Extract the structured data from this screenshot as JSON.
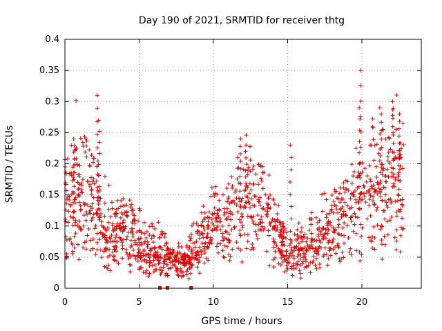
{
  "chart_data": {
    "type": "scatter",
    "title": "Day 190 of 2021, SRMTID for receiver thtg",
    "xlabel": "GPS time / hours",
    "ylabel": "SRMTID / TECUs",
    "xlim": [
      0,
      24
    ],
    "ylim": [
      0,
      0.4
    ],
    "x_ticks": [
      0,
      5,
      10,
      15,
      20
    ],
    "x_tick_labels": [
      "0",
      "5",
      "10",
      "15",
      "20"
    ],
    "y_ticks": [
      0,
      0.05,
      0.1,
      0.15,
      0.2,
      0.25,
      0.3,
      0.35,
      0.4
    ],
    "y_tick_labels": [
      "0",
      "0.05",
      "0.1",
      "0.15",
      "0.2",
      "0.25",
      "0.3",
      "0.35",
      "0.4"
    ],
    "grid": true,
    "marker": "+",
    "color": "#e00000",
    "x_range_of_points": [
      0,
      22.8
    ],
    "envelope_note": "dense scatter; approximate mean level by hour",
    "envelope": [
      {
        "x": 0,
        "y": 0.13
      },
      {
        "x": 1,
        "y": 0.15
      },
      {
        "x": 2,
        "y": 0.14
      },
      {
        "x": 2.5,
        "y": 0.09
      },
      {
        "x": 3,
        "y": 0.08
      },
      {
        "x": 4,
        "y": 0.1
      },
      {
        "x": 5,
        "y": 0.07
      },
      {
        "x": 6,
        "y": 0.06
      },
      {
        "x": 7,
        "y": 0.045
      },
      {
        "x": 8,
        "y": 0.04
      },
      {
        "x": 9,
        "y": 0.07
      },
      {
        "x": 10,
        "y": 0.1
      },
      {
        "x": 11,
        "y": 0.1
      },
      {
        "x": 12,
        "y": 0.14
      },
      {
        "x": 13,
        "y": 0.13
      },
      {
        "x": 14,
        "y": 0.1
      },
      {
        "x": 15,
        "y": 0.05
      },
      {
        "x": 16,
        "y": 0.06
      },
      {
        "x": 17,
        "y": 0.07
      },
      {
        "x": 18,
        "y": 0.09
      },
      {
        "x": 19,
        "y": 0.11
      },
      {
        "x": 20,
        "y": 0.13
      },
      {
        "x": 21,
        "y": 0.15
      },
      {
        "x": 22,
        "y": 0.18
      },
      {
        "x": 22.8,
        "y": 0.17
      }
    ],
    "spikes": [
      {
        "x": 0.6,
        "y": 0.24
      },
      {
        "x": 2.2,
        "y": 0.31
      },
      {
        "x": 2.3,
        "y": 0.27
      },
      {
        "x": 11.8,
        "y": 0.24
      },
      {
        "x": 12.2,
        "y": 0.23
      },
      {
        "x": 15.2,
        "y": 0.23
      },
      {
        "x": 19.9,
        "y": 0.35
      },
      {
        "x": 19.85,
        "y": 0.29
      },
      {
        "x": 21.3,
        "y": 0.28
      },
      {
        "x": 22.1,
        "y": 0.3
      },
      {
        "x": 22.5,
        "y": 0.28
      }
    ],
    "zero_markers_x": [
      6.4,
      6.9,
      8.5
    ]
  }
}
